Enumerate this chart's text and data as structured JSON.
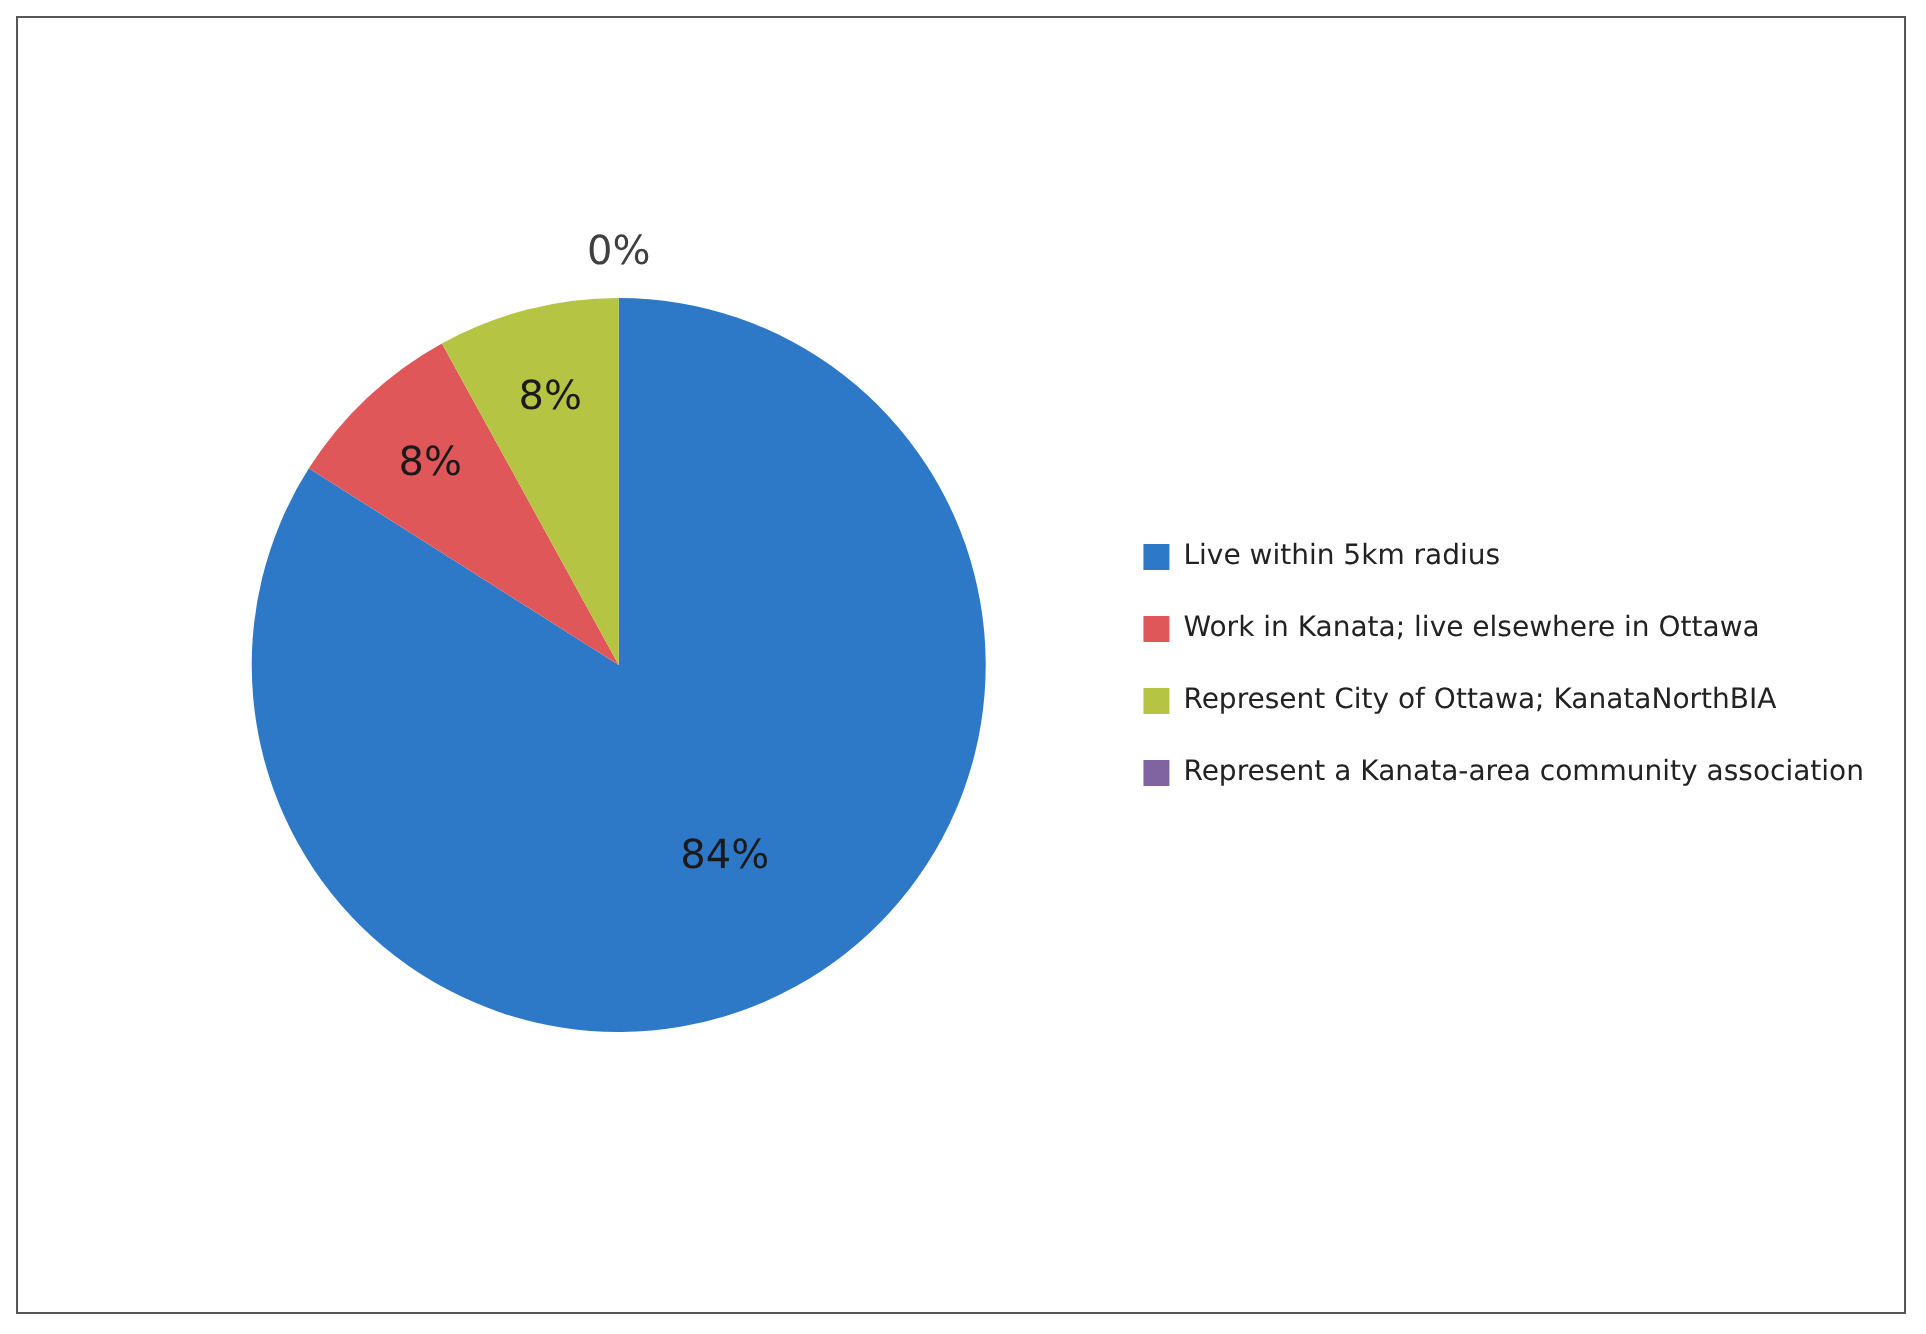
{
  "chart_data": {
    "type": "pie",
    "categories": [
      "Live within 5km radius",
      "Work in Kanata; live elsewhere in Ottawa",
      "Represent City of Ottawa; KanataNorthBIA",
      "Represent a Kanata-area community association"
    ],
    "values": [
      84,
      8,
      8,
      0
    ],
    "colors": [
      "#2e78c8",
      "#e0575a",
      "#b5c442",
      "#8064a2"
    ],
    "value_labels": [
      "84%",
      "8%",
      "8%",
      "0%"
    ],
    "legend": "right"
  }
}
